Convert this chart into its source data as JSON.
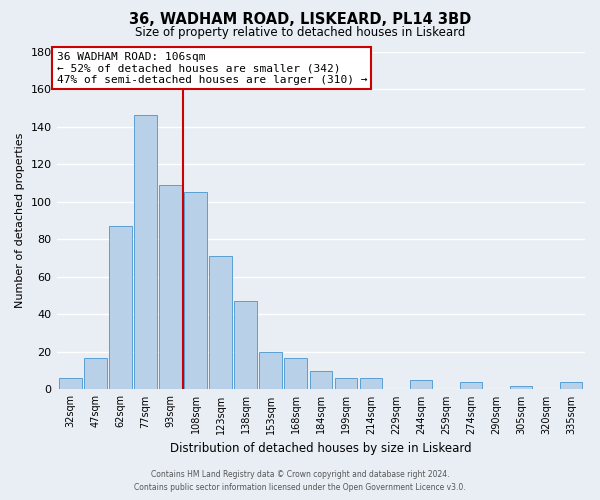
{
  "title": "36, WADHAM ROAD, LISKEARD, PL14 3BD",
  "subtitle": "Size of property relative to detached houses in Liskeard",
  "xlabel": "Distribution of detached houses by size in Liskeard",
  "ylabel": "Number of detached properties",
  "bar_labels": [
    "32sqm",
    "47sqm",
    "62sqm",
    "77sqm",
    "93sqm",
    "108sqm",
    "123sqm",
    "138sqm",
    "153sqm",
    "168sqm",
    "184sqm",
    "199sqm",
    "214sqm",
    "229sqm",
    "244sqm",
    "259sqm",
    "274sqm",
    "290sqm",
    "305sqm",
    "320sqm",
    "335sqm"
  ],
  "bar_values": [
    6,
    17,
    87,
    146,
    109,
    105,
    71,
    47,
    20,
    17,
    10,
    6,
    6,
    0,
    5,
    0,
    4,
    0,
    2,
    0,
    4
  ],
  "bar_color": "#b8d0e8",
  "bar_edge_color": "#5a9fd4",
  "property_line_color": "#cc0000",
  "annotation_title": "36 WADHAM ROAD: 106sqm",
  "annotation_line1": "← 52% of detached houses are smaller (342)",
  "annotation_line2": "47% of semi-detached houses are larger (310) →",
  "annotation_box_color": "#ffffff",
  "annotation_box_edge_color": "#cc0000",
  "ylim": [
    0,
    180
  ],
  "yticks": [
    0,
    20,
    40,
    60,
    80,
    100,
    120,
    140,
    160,
    180
  ],
  "footer_line1": "Contains HM Land Registry data © Crown copyright and database right 2024.",
  "footer_line2": "Contains public sector information licensed under the Open Government Licence v3.0.",
  "bg_color": "#e8eef4",
  "grid_color": "#ffffff"
}
